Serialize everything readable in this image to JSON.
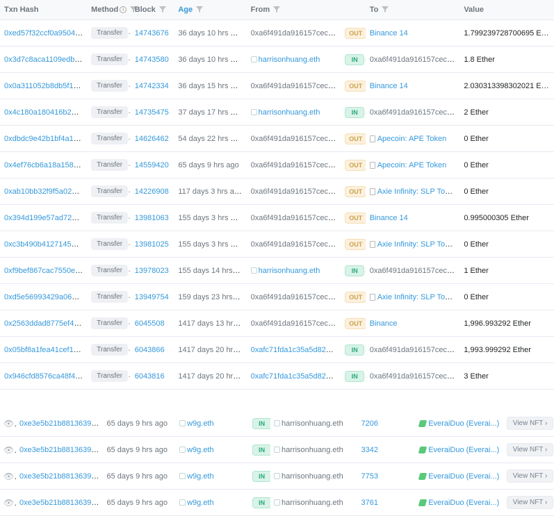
{
  "headers": {
    "txn": "Txn Hash",
    "method": "Method",
    "block": "Block",
    "age": "Age",
    "from": "From",
    "to": "To",
    "value": "Value"
  },
  "transactions": [
    {
      "hash": "0xed57f32ccf0a9504638...",
      "method": "Transfer",
      "block": "14743676",
      "age": "36 days 10 hrs ago",
      "from": "0xa6f491da916157cecb...",
      "from_link": false,
      "dir": "OUT",
      "to": "Binance 14",
      "to_link": true,
      "to_doc": false,
      "value": "1.799239728700695 Ether"
    },
    {
      "hash": "0x3d7c8aca1109edb876...",
      "method": "Transfer",
      "block": "14743580",
      "age": "36 days 10 hrs ago",
      "from": "harrisonhuang.eth",
      "from_link": true,
      "from_ens": true,
      "dir": "IN",
      "to": "0xa6f491da916157cecb...",
      "to_link": false,
      "value": "1.8 Ether"
    },
    {
      "hash": "0x0a311052b8db5f1858...",
      "method": "Transfer",
      "block": "14742334",
      "age": "36 days 15 hrs ago",
      "from": "0xa6f491da916157cecb...",
      "from_link": false,
      "dir": "OUT",
      "to": "Binance 14",
      "to_link": true,
      "to_doc": false,
      "value": "2.030313398302021 Ether"
    },
    {
      "hash": "0x4c180a180416b2d2b8...",
      "method": "Transfer",
      "block": "14735475",
      "age": "37 days 17 hrs ago",
      "from": "harrisonhuang.eth",
      "from_link": true,
      "from_ens": true,
      "dir": "IN",
      "to": "0xa6f491da916157cecb...",
      "to_link": false,
      "value": "2 Ether"
    },
    {
      "hash": "0xdbdc9e42b1bf4a1501...",
      "method": "Transfer",
      "block": "14626462",
      "age": "54 days 22 hrs ago",
      "from": "0xa6f491da916157cecb...",
      "from_link": false,
      "dir": "OUT",
      "to": "Apecoin: APE Token",
      "to_link": true,
      "to_doc": true,
      "value": "0 Ether"
    },
    {
      "hash": "0x4ef76cb6a18a1580c0...",
      "method": "Transfer",
      "block": "14559420",
      "age": "65 days 9 hrs ago",
      "from": "0xa6f491da916157cecb...",
      "from_link": false,
      "dir": "OUT",
      "to": "Apecoin: APE Token",
      "to_link": true,
      "to_doc": true,
      "value": "0 Ether"
    },
    {
      "hash": "0xab10bb32f9f5a02a44b...",
      "method": "Transfer",
      "block": "14226908",
      "age": "117 days 3 hrs ago",
      "from": "0xa6f491da916157cecb...",
      "from_link": false,
      "dir": "OUT",
      "to": "Axie Infinity: SLP Token",
      "to_link": true,
      "to_doc": true,
      "value": "0 Ether"
    },
    {
      "hash": "0x394d199e57ad726a8f...",
      "method": "Transfer",
      "block": "13981063",
      "age": "155 days 3 hrs ago",
      "from": "0xa6f491da916157cecb...",
      "from_link": false,
      "dir": "OUT",
      "to": "Binance 14",
      "to_link": true,
      "to_doc": false,
      "value": "0.995000305 Ether"
    },
    {
      "hash": "0xc3b490b4127145d95e...",
      "method": "Transfer",
      "block": "13981025",
      "age": "155 days 3 hrs ago",
      "from": "0xa6f491da916157cecb...",
      "from_link": false,
      "dir": "OUT",
      "to": "Axie Infinity: SLP Token",
      "to_link": true,
      "to_doc": true,
      "value": "0 Ether"
    },
    {
      "hash": "0xf9bef867cac7550e359...",
      "method": "Transfer",
      "block": "13978023",
      "age": "155 days 14 hrs ago",
      "from": "harrisonhuang.eth",
      "from_link": true,
      "from_ens": true,
      "dir": "IN",
      "to": "0xa6f491da916157cecb...",
      "to_link": false,
      "value": "1 Ether"
    },
    {
      "hash": "0xd5e56993429a069fc7...",
      "method": "Transfer",
      "block": "13949754",
      "age": "159 days 23 hrs ago",
      "from": "0xa6f491da916157cecb...",
      "from_link": false,
      "dir": "OUT",
      "to": "Axie Infinity: SLP Token",
      "to_link": true,
      "to_doc": true,
      "value": "0 Ether"
    },
    {
      "hash": "0x2563ddad8775ef4b40...",
      "method": "Transfer",
      "block": "6045508",
      "age": "1417 days 13 hrs ago",
      "from": "0xa6f491da916157cecb...",
      "from_link": false,
      "dir": "OUT",
      "to": "Binance",
      "to_link": true,
      "to_doc": false,
      "value": "1,996.993292 Ether"
    },
    {
      "hash": "0x05bf8a1fea41cef161f2...",
      "method": "Transfer",
      "block": "6043866",
      "age": "1417 days 20 hrs ago",
      "from": "0xafc71fda1c35a5d82c0...",
      "from_link": true,
      "dir": "IN",
      "to": "0xa6f491da916157cecb...",
      "to_link": false,
      "value": "1,993.999292 Ether"
    },
    {
      "hash": "0x946cfd8576ca48f4cc5...",
      "method": "Transfer",
      "block": "6043816",
      "age": "1417 days 20 hrs ago",
      "from": "0xafc71fda1c35a5d82c0...",
      "from_link": true,
      "dir": "IN",
      "to": "0xa6f491da916157cecb...",
      "to_link": false,
      "value": "3 Ether"
    }
  ],
  "nft_transfers": [
    {
      "hash": "0xe3e5b21b881363975c...",
      "age": "65 days 9 hrs ago",
      "from": "w9g.eth",
      "to": "harrisonhuang.eth",
      "id": "7206",
      "collection": "EveraiDuo (Everai...)",
      "btn": "View NFT"
    },
    {
      "hash": "0xe3e5b21b881363975c...",
      "age": "65 days 9 hrs ago",
      "from": "w9g.eth",
      "to": "harrisonhuang.eth",
      "id": "3342",
      "collection": "EveraiDuo (Everai...)",
      "btn": "View NFT"
    },
    {
      "hash": "0xe3e5b21b881363975c...",
      "age": "65 days 9 hrs ago",
      "from": "w9g.eth",
      "to": "harrisonhuang.eth",
      "id": "7753",
      "collection": "EveraiDuo (Everai...)",
      "btn": "View NFT"
    },
    {
      "hash": "0xe3e5b21b881363975c...",
      "age": "65 days 9 hrs ago",
      "from": "w9g.eth",
      "to": "harrisonhuang.eth",
      "id": "3761",
      "collection": "EveraiDuo (Everai...)",
      "btn": "View NFT"
    }
  ]
}
